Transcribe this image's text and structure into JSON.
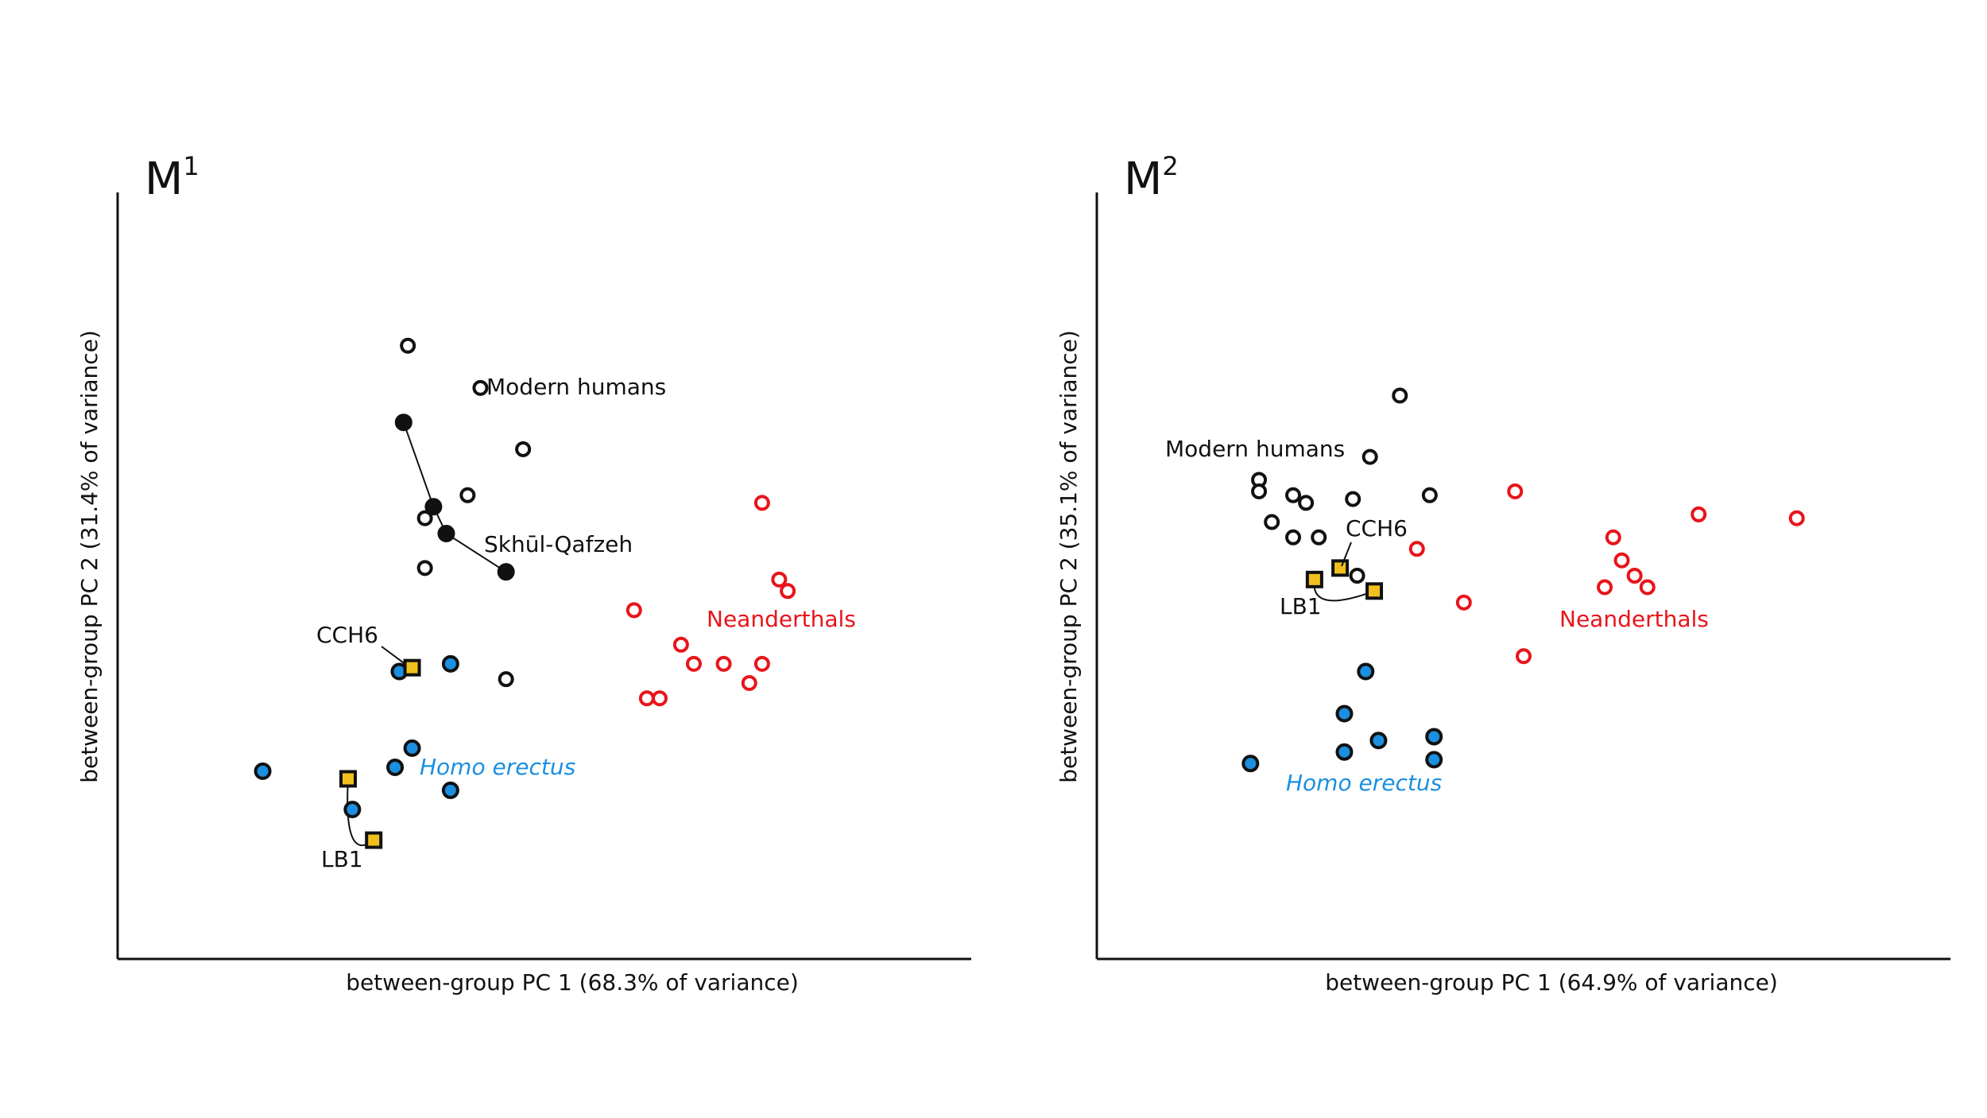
{
  "colors": {
    "modern": "#111111",
    "neanderthal": "#e8141b",
    "erectus_fill": "#1b8fe0",
    "specimen_fill": "#f2c01e",
    "axis": "#111111"
  },
  "chart_data": [
    {
      "type": "scatter",
      "title": "M",
      "title_superscript": "1",
      "xlabel": "between-group PC 1 (68.3% of variance)",
      "ylabel": "between-group PC 2 (31.4% of variance)",
      "xlim": [
        0,
        100
      ],
      "ylim": [
        0,
        100
      ],
      "grid": false,
      "series": [
        {
          "name": "Modern humans",
          "marker": "open-circle",
          "color": "#111111",
          "x": [
            34,
            42.5,
            47.5,
            41,
            36,
            36,
            45.5
          ],
          "y": [
            80,
            74.5,
            66.5,
            60.5,
            57.5,
            51,
            36.5
          ]
        },
        {
          "name": "Skhūl-Qafzeh",
          "marker": "filled-circle",
          "color": "#111111",
          "connected": true,
          "x": [
            33.5,
            37,
            38.5,
            45.5
          ],
          "y": [
            70,
            59,
            55.5,
            50.5
          ]
        },
        {
          "name": "Neanderthals",
          "marker": "open-circle",
          "color": "#e8141b",
          "x": [
            75.5,
            77.5,
            78.5,
            60.5,
            66,
            67.5,
            71,
            75.5,
            62,
            63.5,
            74
          ],
          "y": [
            59.5,
            49.5,
            48,
            45.5,
            41,
            38.5,
            38.5,
            38.5,
            34,
            34,
            36
          ]
        },
        {
          "name": "Homo erectus",
          "marker": "filled-circle",
          "color": "#1b8fe0",
          "x": [
            39,
            33,
            17,
            34.5,
            32.5,
            27.5,
            39
          ],
          "y": [
            38.5,
            37.5,
            24.5,
            27.5,
            25,
            19.5,
            22
          ]
        },
        {
          "name": "CCH6",
          "marker": "square",
          "color": "#f2c01e",
          "x": [
            34.5
          ],
          "y": [
            38
          ]
        },
        {
          "name": "LB1",
          "marker": "square",
          "color": "#f2c01e",
          "connected": true,
          "x": [
            27,
            30
          ],
          "y": [
            23.5,
            15.5
          ]
        }
      ],
      "annotations": [
        {
          "text": "Modern humans",
          "color": "#111111",
          "italic": false
        },
        {
          "text": "Skhūl-Qafzeh",
          "color": "#111111",
          "italic": false
        },
        {
          "text": "Neanderthals",
          "color": "#e8141b",
          "italic": false
        },
        {
          "text": "Homo erectus",
          "color": "#1b8fe0",
          "italic": true
        },
        {
          "text": "CCH6",
          "color": "#111111",
          "italic": false
        },
        {
          "text": "LB1",
          "color": "#111111",
          "italic": false
        }
      ]
    },
    {
      "type": "scatter",
      "title": "M",
      "title_superscript": "2",
      "xlabel": "between-group PC 1 (64.9% of variance)",
      "ylabel": "between-group PC 2 (35.1% of variance)",
      "xlim": [
        0,
        100
      ],
      "ylim": [
        0,
        100
      ],
      "grid": false,
      "series": [
        {
          "name": "Modern humans",
          "marker": "open-circle",
          "color": "#111111",
          "x": [
            35.5,
            32,
            19,
            19,
            23,
            24.5,
            30,
            39,
            20.5,
            23,
            26,
            30.5
          ],
          "y": [
            73.5,
            65.5,
            62.5,
            61,
            60.5,
            59.5,
            60,
            60.5,
            57,
            55,
            55,
            50
          ]
        },
        {
          "name": "Neanderthals",
          "marker": "open-circle",
          "color": "#e8141b",
          "x": [
            49,
            70.5,
            82,
            37.5,
            60.5,
            61.5,
            63,
            59.5,
            64.5,
            43,
            50
          ],
          "y": [
            61,
            58,
            57.5,
            53.5,
            55,
            52,
            50,
            48.5,
            48.5,
            46.5,
            39.5
          ]
        },
        {
          "name": "Homo erectus",
          "marker": "filled-circle",
          "color": "#1b8fe0",
          "x": [
            31.5,
            29,
            33,
            39.5,
            29,
            39.5,
            18
          ],
          "y": [
            37.5,
            32,
            28.5,
            29,
            27,
            26,
            25.5
          ]
        },
        {
          "name": "CCH6",
          "marker": "square",
          "color": "#f2c01e",
          "x": [
            28.5
          ],
          "y": [
            51
          ]
        },
        {
          "name": "LB1",
          "marker": "square",
          "color": "#f2c01e",
          "connected": true,
          "x": [
            25.5,
            32.5
          ],
          "y": [
            49.5,
            48
          ]
        }
      ],
      "annotations": [
        {
          "text": "Modern humans",
          "color": "#111111",
          "italic": false
        },
        {
          "text": "CCH6",
          "color": "#111111",
          "italic": false
        },
        {
          "text": "LB1",
          "color": "#111111",
          "italic": false
        },
        {
          "text": "Neanderthals",
          "color": "#e8141b",
          "italic": false
        },
        {
          "text": "Homo erectus",
          "color": "#1b8fe0",
          "italic": true
        }
      ]
    }
  ]
}
